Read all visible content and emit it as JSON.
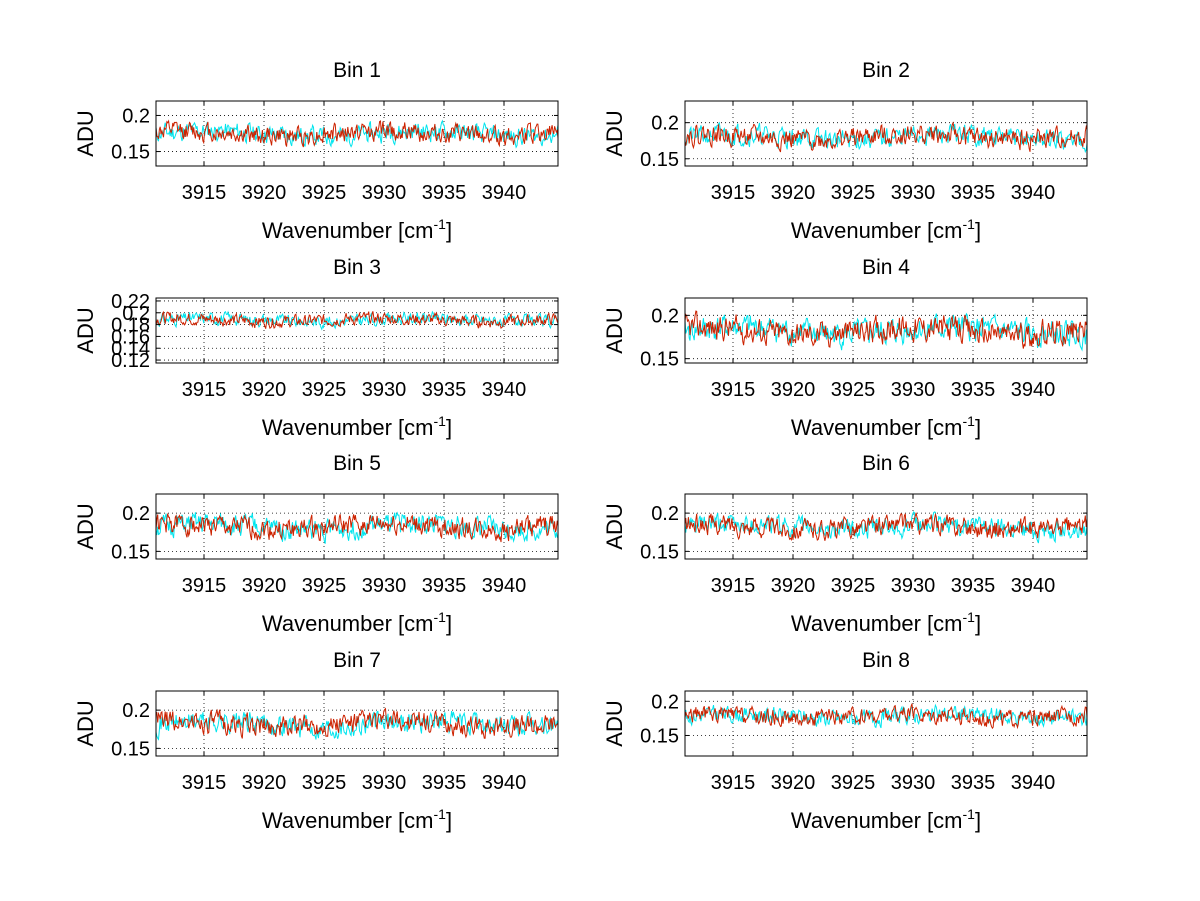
{
  "chart_data": [
    {
      "type": "line",
      "title": "Bin 1",
      "xlabel": "Wavenumber [cm",
      "xlabel_sup": "-1",
      "xlabel_close": "]",
      "ylabel": "ADU",
      "xlim": [
        3911,
        3944.5
      ],
      "ylim": [
        0.13,
        0.22
      ],
      "xticks": [
        3915,
        3920,
        3925,
        3930,
        3935,
        3940
      ],
      "yticks": [
        0.15,
        0.2
      ],
      "ytick_labels": [
        "0.15",
        "0.2"
      ],
      "grid": true,
      "mean": 0.175,
      "amplitude": 0.014,
      "series": [
        {
          "color": "#00e5ee",
          "seed": 11
        },
        {
          "color": "#cc2200",
          "seed": 12
        }
      ]
    },
    {
      "type": "line",
      "title": "Bin 2",
      "xlabel": "Wavenumber [cm",
      "xlabel_sup": "-1",
      "xlabel_close": "]",
      "ylabel": "ADU",
      "xlim": [
        3911,
        3944.5
      ],
      "ylim": [
        0.14,
        0.23
      ],
      "xticks": [
        3915,
        3920,
        3925,
        3930,
        3935,
        3940
      ],
      "yticks": [
        0.15,
        0.2
      ],
      "ytick_labels": [
        "0.15",
        "0.2"
      ],
      "grid": true,
      "mean": 0.18,
      "amplitude": 0.015,
      "series": [
        {
          "color": "#00e5ee",
          "seed": 21
        },
        {
          "color": "#cc2200",
          "seed": 22
        }
      ]
    },
    {
      "type": "line",
      "title": "Bin 3",
      "xlabel": "Wavenumber [cm",
      "xlabel_sup": "-1",
      "xlabel_close": "]",
      "ylabel": "ADU",
      "xlim": [
        3911,
        3944.5
      ],
      "ylim": [
        0.115,
        0.225
      ],
      "xticks": [
        3915,
        3920,
        3925,
        3930,
        3935,
        3940
      ],
      "yticks": [
        0.12,
        0.14,
        0.16,
        0.18,
        0.2,
        0.22
      ],
      "ytick_labels": [
        "0.12",
        "0.14",
        "0.16",
        "0.18",
        "0.2",
        "0.22"
      ],
      "grid": true,
      "mean": 0.188,
      "amplitude": 0.011,
      "series": [
        {
          "color": "#00e5ee",
          "seed": 31
        },
        {
          "color": "#cc2200",
          "seed": 32
        }
      ]
    },
    {
      "type": "line",
      "title": "Bin 4",
      "xlabel": "Wavenumber [cm",
      "xlabel_sup": "-1",
      "xlabel_close": "]",
      "ylabel": "ADU",
      "xlim": [
        3911,
        3944.5
      ],
      "ylim": [
        0.145,
        0.22
      ],
      "xticks": [
        3915,
        3920,
        3925,
        3930,
        3935,
        3940
      ],
      "yticks": [
        0.15,
        0.2
      ],
      "ytick_labels": [
        "0.15",
        "0.2"
      ],
      "grid": true,
      "mean": 0.182,
      "amplitude": 0.016,
      "series": [
        {
          "color": "#00e5ee",
          "seed": 41
        },
        {
          "color": "#cc2200",
          "seed": 42
        }
      ]
    },
    {
      "type": "line",
      "title": "Bin 5",
      "xlabel": "Wavenumber [cm",
      "xlabel_sup": "-1",
      "xlabel_close": "]",
      "ylabel": "ADU",
      "xlim": [
        3911,
        3944.5
      ],
      "ylim": [
        0.14,
        0.225
      ],
      "xticks": [
        3915,
        3920,
        3925,
        3930,
        3935,
        3940
      ],
      "yticks": [
        0.15,
        0.2
      ],
      "ytick_labels": [
        "0.15",
        "0.2"
      ],
      "grid": true,
      "mean": 0.182,
      "amplitude": 0.015,
      "series": [
        {
          "color": "#00e5ee",
          "seed": 51
        },
        {
          "color": "#cc2200",
          "seed": 52
        }
      ]
    },
    {
      "type": "line",
      "title": "Bin 6",
      "xlabel": "Wavenumber [cm",
      "xlabel_sup": "-1",
      "xlabel_close": "]",
      "ylabel": "ADU",
      "xlim": [
        3911,
        3944.5
      ],
      "ylim": [
        0.14,
        0.225
      ],
      "xticks": [
        3915,
        3920,
        3925,
        3930,
        3935,
        3940
      ],
      "yticks": [
        0.15,
        0.2
      ],
      "ytick_labels": [
        "0.15",
        "0.2"
      ],
      "grid": true,
      "mean": 0.182,
      "amplitude": 0.014,
      "series": [
        {
          "color": "#00e5ee",
          "seed": 61
        },
        {
          "color": "#cc2200",
          "seed": 62
        }
      ]
    },
    {
      "type": "line",
      "title": "Bin 7",
      "xlabel": "Wavenumber [cm",
      "xlabel_sup": "-1",
      "xlabel_close": "]",
      "ylabel": "ADU",
      "xlim": [
        3911,
        3944.5
      ],
      "ylim": [
        0.14,
        0.225
      ],
      "xticks": [
        3915,
        3920,
        3925,
        3930,
        3935,
        3940
      ],
      "yticks": [
        0.15,
        0.2
      ],
      "ytick_labels": [
        "0.15",
        "0.2"
      ],
      "grid": true,
      "mean": 0.182,
      "amplitude": 0.015,
      "series": [
        {
          "color": "#00e5ee",
          "seed": 71
        },
        {
          "color": "#cc2200",
          "seed": 72
        }
      ]
    },
    {
      "type": "line",
      "title": "Bin 8",
      "xlabel": "Wavenumber [cm",
      "xlabel_sup": "-1",
      "xlabel_close": "]",
      "ylabel": "ADU",
      "xlim": [
        3911,
        3944.5
      ],
      "ylim": [
        0.12,
        0.215
      ],
      "xticks": [
        3915,
        3920,
        3925,
        3930,
        3935,
        3940
      ],
      "yticks": [
        0.15,
        0.2
      ],
      "ytick_labels": [
        "0.15",
        "0.2"
      ],
      "grid": true,
      "mean": 0.178,
      "amplitude": 0.013,
      "series": [
        {
          "color": "#00e5ee",
          "seed": 81
        },
        {
          "color": "#cc2200",
          "seed": 82
        }
      ]
    }
  ]
}
